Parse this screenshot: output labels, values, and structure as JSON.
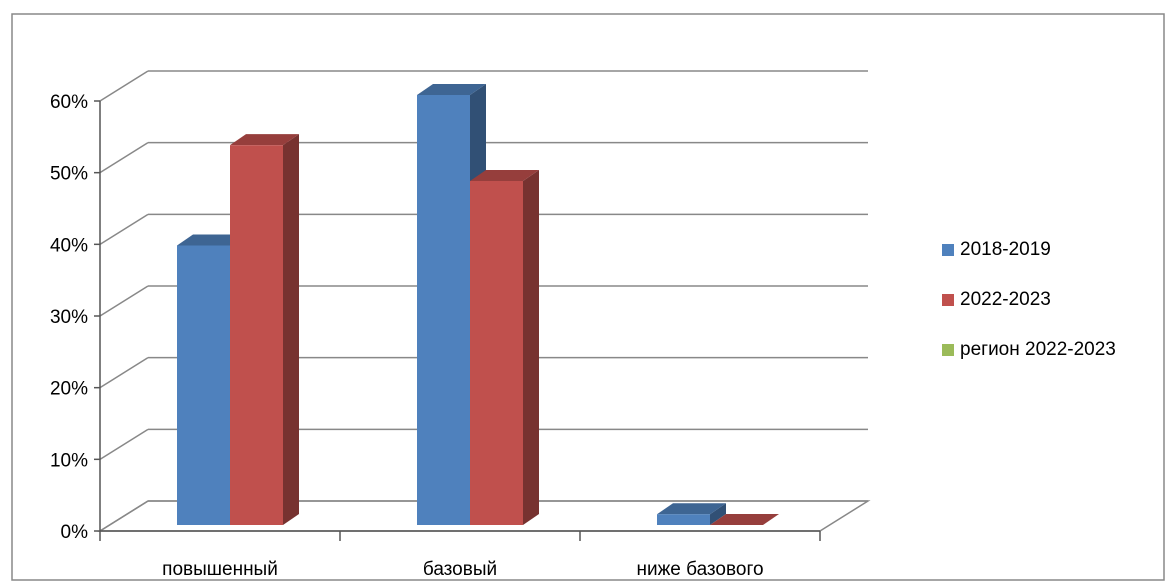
{
  "chart_data": {
    "type": "bar",
    "three_d": true,
    "categories": [
      "повышенный",
      "базовый",
      "ниже базового"
    ],
    "series": [
      {
        "name": "2018-2019",
        "color": "#4F81BD",
        "values": [
          39,
          60,
          1.5
        ]
      },
      {
        "name": "2022-2023",
        "color": "#C0504D",
        "values": [
          53,
          48,
          0
        ]
      },
      {
        "name": "регион 2022-2023",
        "color": "#9BBB59",
        "values": [
          0,
          0,
          0
        ]
      }
    ],
    "y_ticks": [
      "0%",
      "10%",
      "20%",
      "30%",
      "40%",
      "50%",
      "60%"
    ],
    "ylim": [
      0,
      60
    ],
    "grid": true,
    "legend_position": "right"
  }
}
